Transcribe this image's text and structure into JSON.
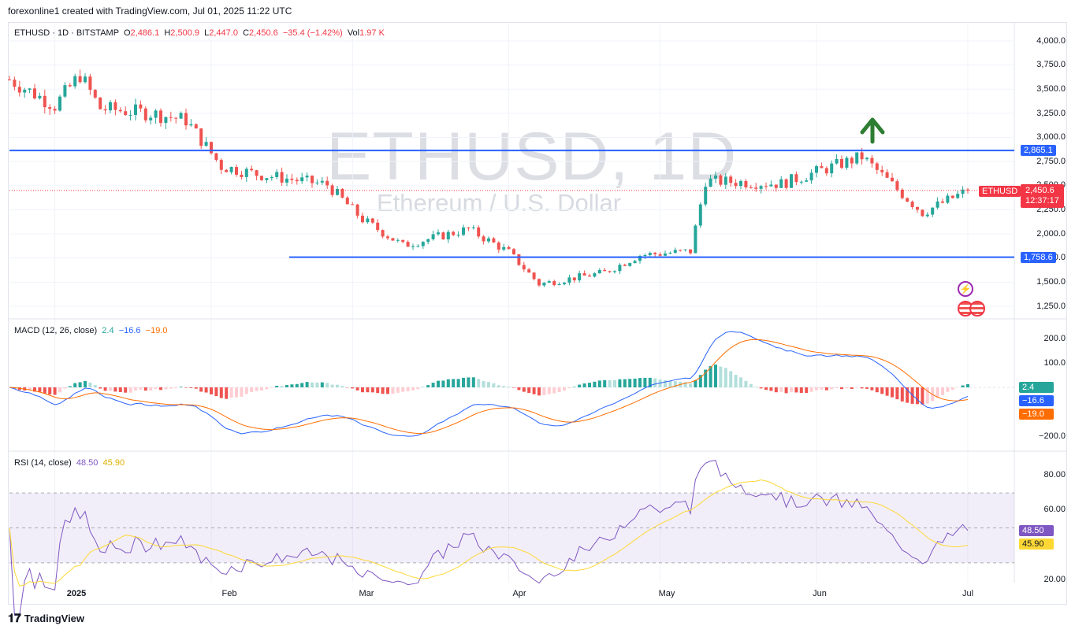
{
  "header": {
    "credit": "forexonline1 created with TradingView.com, Jul 01, 2025 11:22 UTC"
  },
  "watermark": {
    "symbol": "ETHUSD, 1D",
    "description": "Ethereum / U.S. Dollar"
  },
  "legend": {
    "symbol": "ETHUSD · 1D · BITSTAMP",
    "o_label": "O",
    "o": "2,486.1",
    "h_label": "H",
    "h": "2,500.9",
    "l_label": "L",
    "l": "2,447.0",
    "c_label": "C",
    "c": "2,450.6",
    "change": "−35.4 (−1.42%)",
    "vol_label": "Vol",
    "vol": "1.97 K"
  },
  "price_axis": [
    "4,000.0",
    "3,750.0",
    "3,500.0",
    "3,250.0",
    "3,000.0",
    "2,750.0",
    "2,500.0",
    "2,250.0",
    "2,000.0",
    "1,750.0",
    "1,500.0",
    "1,250.0"
  ],
  "price_tags": {
    "resistance": "2,865.1",
    "support": "1,758.6",
    "symbol": "ETHUSD",
    "last": "2,450.6",
    "countdown": "12:37:17"
  },
  "macd": {
    "title": "MACD (12, 26, close)",
    "hist": "2.4",
    "macd": "−16.6",
    "signal": "−19.0",
    "axis": [
      "200.0",
      "100.0",
      "−200.0"
    ]
  },
  "rsi": {
    "title": "RSI (14, close)",
    "value": "48.50",
    "ma": "45.90",
    "axis": [
      "80.00",
      "60.00",
      "20.00"
    ]
  },
  "time_axis": [
    "2025",
    "Feb",
    "Mar",
    "Apr",
    "May",
    "Jun",
    "Jul"
  ],
  "brand": {
    "name": "TradingView"
  },
  "colors": {
    "up": "#26a69a",
    "down": "#ef5350",
    "level": "#2962ff",
    "arrow": "#2e7d32",
    "macd": "#2962ff",
    "signal": "#ff6d00",
    "rsi": "#7e57c2",
    "rsi_ma": "#fdd835"
  },
  "chart_data": {
    "type": "candlestick",
    "symbol": "ETHUSD",
    "interval": "1D",
    "x_ticks": [
      "2025",
      "Feb",
      "Mar",
      "Apr",
      "May",
      "Jun",
      "Jul"
    ],
    "ylim": [
      1250,
      4000
    ],
    "horizontal_levels": [
      2865.1,
      1758.6
    ],
    "close_path": [
      {
        "x": "2024-12-23",
        "y": 3600
      },
      {
        "x": "2025-01-01",
        "y": 3330
      },
      {
        "x": "2025-01-06",
        "y": 3650
      },
      {
        "x": "2025-01-10",
        "y": 3300
      },
      {
        "x": "2025-01-20",
        "y": 3250
      },
      {
        "x": "2025-01-27",
        "y": 3180
      },
      {
        "x": "2025-02-03",
        "y": 2700
      },
      {
        "x": "2025-02-10",
        "y": 2620
      },
      {
        "x": "2025-02-24",
        "y": 2510
      },
      {
        "x": "2025-03-03",
        "y": 2150
      },
      {
        "x": "2025-03-11",
        "y": 1880
      },
      {
        "x": "2025-03-24",
        "y": 2050
      },
      {
        "x": "2025-04-01",
        "y": 1810
      },
      {
        "x": "2025-04-07",
        "y": 1480
      },
      {
        "x": "2025-04-20",
        "y": 1600
      },
      {
        "x": "2025-04-27",
        "y": 1780
      },
      {
        "x": "2025-05-07",
        "y": 1820
      },
      {
        "x": "2025-05-10",
        "y": 2550
      },
      {
        "x": "2025-05-25",
        "y": 2520
      },
      {
        "x": "2025-06-10",
        "y": 2800
      },
      {
        "x": "2025-06-22",
        "y": 2220
      },
      {
        "x": "2025-07-01",
        "y": 2450.6
      }
    ]
  }
}
